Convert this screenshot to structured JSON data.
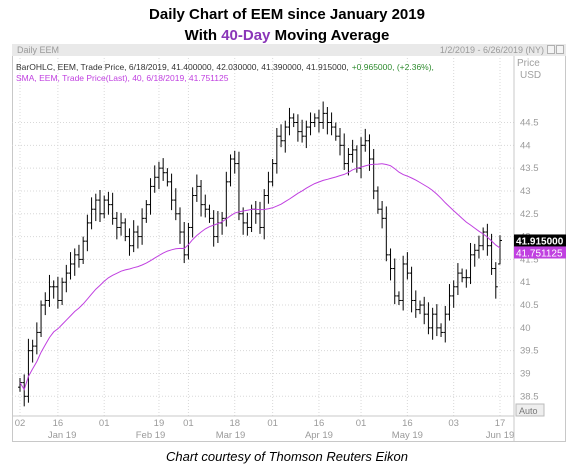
{
  "title": {
    "line1": "Daily Chart of EEM since January 2019",
    "line2_pre": "With ",
    "line2_highlight": "40-Day",
    "line2_post": " Moving Average"
  },
  "header": {
    "left": "Daily EEM",
    "right": "1/2/2019 - 6/26/2019 (NY)"
  },
  "legend": {
    "ohlc_text": "BarOHLC, EEM, Trade Price, 6/18/2019, 41.400000, 42.030000, 41.390000, 41.915000,",
    "ohlc_change": "+0.965000, (+2.36%),",
    "sma_text": "SMA, EEM, Trade Price(Last), 40, 6/18/2019, 41.751125"
  },
  "axis": {
    "price_label": "Price",
    "currency_label": "USD",
    "auto_label": "Auto"
  },
  "colors": {
    "bars": "#000000",
    "sma": "#c040e0",
    "grid": "#d8d8d8",
    "title_highlight": "#8a36b8",
    "change": "#2e8b2e",
    "last_price_tag": "#000000",
    "sma_tag": "#c040e0"
  },
  "footer": "Chart courtesy of Thomson Reuters Eikon",
  "chart_data": {
    "type": "ohlc",
    "symbol": "EEM",
    "ylim": [
      38.2,
      45.3
    ],
    "y_ticks": [
      38.5,
      39,
      39.5,
      40,
      40.5,
      41,
      41.5,
      42,
      42.5,
      43,
      43.5,
      44,
      44.5
    ],
    "x_tick_labels": [
      "02",
      "16",
      "01",
      "19",
      "01",
      "18",
      "01",
      "16",
      "01",
      "16",
      "03",
      "17"
    ],
    "x_tick_indices": [
      0,
      9,
      20,
      33,
      40,
      51,
      60,
      71,
      81,
      92,
      103,
      114
    ],
    "month_labels": [
      {
        "label": "Jan 19",
        "index": 10
      },
      {
        "label": "Feb 19",
        "index": 31
      },
      {
        "label": "Mar 19",
        "index": 50
      },
      {
        "label": "Apr 19",
        "index": 71
      },
      {
        "label": "May 19",
        "index": 92
      },
      {
        "label": "Jun 19",
        "index": 114
      }
    ],
    "closes": [
      38.8,
      38.5,
      39.5,
      39.6,
      39.9,
      40.5,
      40.6,
      40.9,
      40.9,
      40.6,
      41.0,
      41.2,
      41.4,
      41.6,
      41.5,
      41.9,
      42.3,
      42.6,
      42.8,
      42.5,
      42.8,
      42.7,
      42.4,
      42.2,
      42.3,
      42.0,
      41.8,
      42.1,
      42.0,
      42.4,
      42.7,
      43.1,
      43.3,
      43.5,
      43.4,
      43.2,
      42.8,
      42.5,
      42.1,
      41.6,
      42.2,
      42.9,
      43.1,
      42.7,
      42.6,
      42.4,
      42.0,
      42.3,
      42.4,
      43.2,
      43.7,
      43.6,
      42.5,
      42.3,
      42.2,
      42.6,
      42.5,
      42.2,
      42.9,
      43.2,
      43.6,
      44.2,
      44.1,
      44.4,
      44.6,
      44.5,
      44.3,
      44.2,
      44.4,
      44.5,
      44.6,
      44.5,
      44.7,
      44.5,
      44.4,
      44.2,
      44.0,
      43.6,
      43.8,
      43.9,
      43.5,
      44.0,
      44.1,
      43.7,
      43.0,
      42.6,
      42.4,
      41.6,
      41.3,
      40.7,
      40.6,
      41.4,
      41.2,
      40.6,
      40.4,
      40.5,
      40.3,
      40.0,
      40.3,
      40.0,
      39.9,
      40.3,
      40.7,
      40.9,
      41.2,
      41.1,
      41.1,
      41.6,
      41.7,
      41.8,
      42.1,
      41.8,
      41.3,
      40.9,
      41.915
    ],
    "sma": {
      "period": 40,
      "last_value": 41.751125
    },
    "last_bar": {
      "date": "6/18/2019",
      "open": 41.4,
      "high": 42.03,
      "low": 41.39,
      "close": 41.915,
      "change": 0.965,
      "change_pct": 2.36
    },
    "last_price_label": "41.915000",
    "sma_label": "41.751125",
    "grid": true
  }
}
